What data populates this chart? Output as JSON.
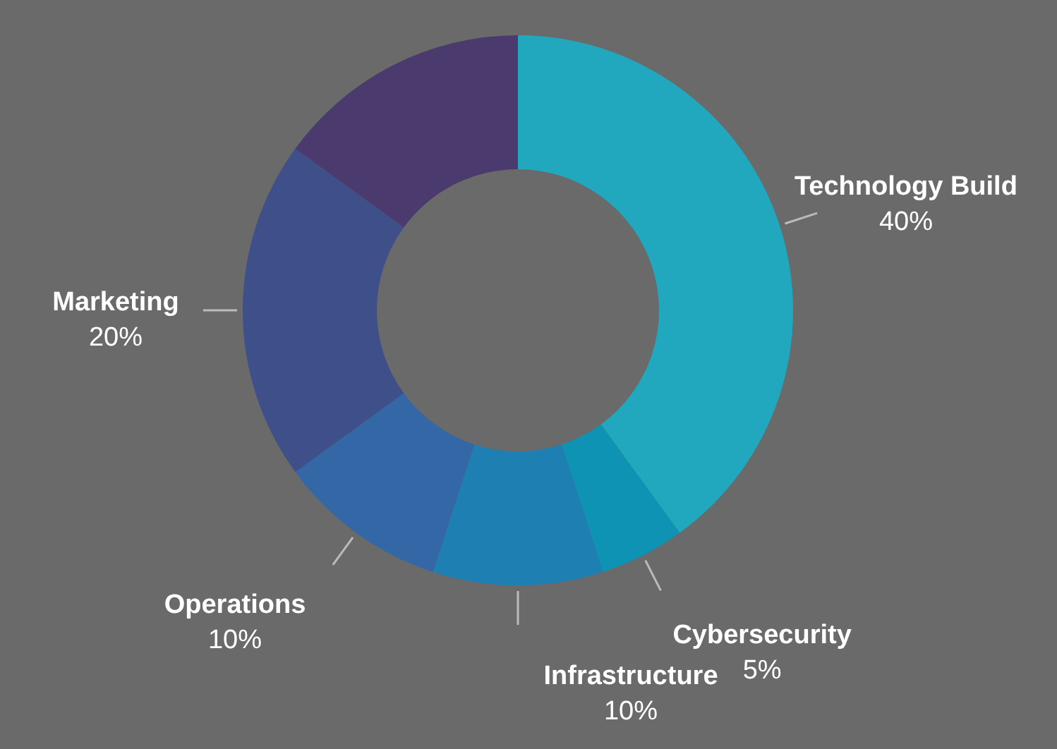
{
  "chart_data": {
    "type": "donut",
    "categories": [
      "Technology Build",
      "Cybersecurity",
      "Infrastructure",
      "Operations",
      "Marketing",
      null
    ],
    "values": [
      40,
      5,
      10,
      10,
      20,
      15
    ],
    "value_labels": [
      "40%",
      "5%",
      "10%",
      "10%",
      "20%",
      null
    ],
    "colors": [
      "#21a8bf",
      "#0e93b5",
      "#1e7fb3",
      "#3467a6",
      "#3f4f8a",
      "#4a3a6e"
    ]
  }
}
